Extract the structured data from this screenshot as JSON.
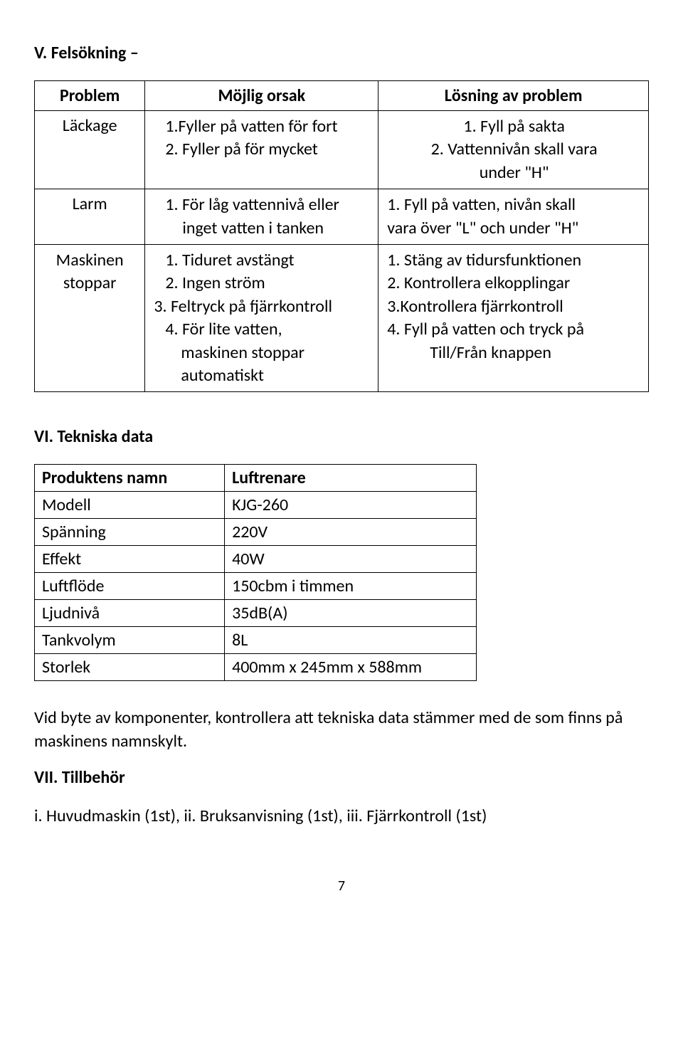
{
  "section5": {
    "title": "V. Felsökning –",
    "headers": [
      "Problem",
      "Möjlig orsak",
      "Lösning av problem"
    ],
    "rows": [
      {
        "problem": "Läckage",
        "cause": [
          "1.Fyller på vatten för fort",
          "2. Fyller på för mycket"
        ],
        "solution": [
          "1. Fyll på sakta",
          "2. Vattennivån skall vara",
          "under \"H\""
        ]
      },
      {
        "problem": "Larm",
        "cause": [
          "1. För låg vattennivå eller",
          "inget vatten i tanken"
        ],
        "solution": [
          "1. Fyll på vatten, nivån skall",
          "vara över \"L\" och under \"H\""
        ]
      },
      {
        "problem_lines": [
          "Maskinen",
          "stoppar"
        ],
        "cause": [
          "1. Tiduret avstängt",
          "2. Ingen ström",
          "3. Feltryck på fjärrkontroll",
          "4. För lite vatten,",
          "maskinen stoppar",
          "automatiskt"
        ],
        "solution": [
          "1. Stäng av tidursfunktionen",
          "2. Kontrollera elkopplingar",
          "3.Kontrollera fjärrkontroll",
          "4. Fyll på vatten och tryck på",
          "Till/Från knappen"
        ]
      }
    ]
  },
  "section6": {
    "title": "VI. Tekniska data",
    "rows": [
      {
        "k": "Produktens namn",
        "v": "Luftrenare",
        "bold": true
      },
      {
        "k": "Modell",
        "v": "KJG-260"
      },
      {
        "k": "Spänning",
        "v": "220V"
      },
      {
        "k": "Effekt",
        "v": "40W"
      },
      {
        "k": "Luftflöde",
        "v": "150cbm i timmen"
      },
      {
        "k": "Ljudnivå",
        "v": "35dB(A)"
      },
      {
        "k": "Tankvolym",
        "v": "8L"
      },
      {
        "k": "Storlek",
        "v": "400mm x 245mm x 588mm"
      }
    ]
  },
  "note": "Vid byte av komponenter, kontrollera att tekniska data stämmer med de som finns på maskinens namnskylt.",
  "section7": {
    "title": "VII. Tillbehör",
    "text": "i. Huvudmaskin (1st), ii. Bruksanvisning (1st), iii. Fjärrkontroll (1st)"
  },
  "page_number": "7"
}
